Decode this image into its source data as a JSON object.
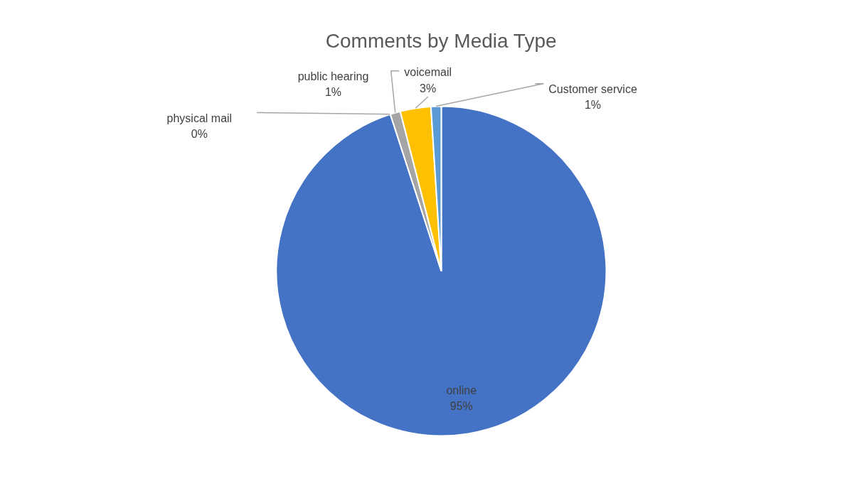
{
  "chart_data": {
    "type": "pie",
    "title": "Comments by Media Type",
    "categories": [
      "online",
      "physical mail",
      "public hearing",
      "voicemail",
      "Customer service"
    ],
    "values": [
      95,
      0,
      1,
      3,
      1
    ],
    "value_labels": [
      "95%",
      "0%",
      "1%",
      "3%",
      "1%"
    ],
    "colors": [
      "#4472c4",
      "#ed7d31",
      "#a5a5a5",
      "#ffc000",
      "#5b9bd5"
    ]
  }
}
